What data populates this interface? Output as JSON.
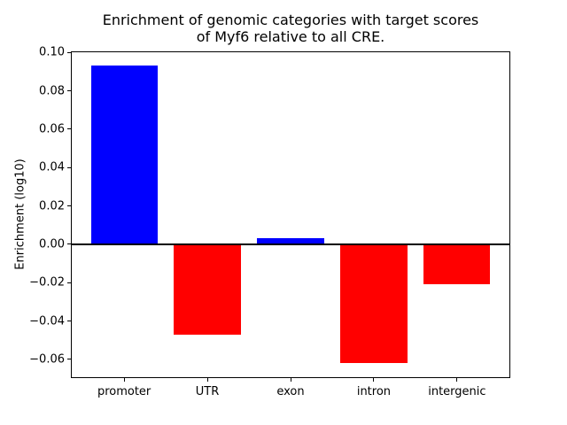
{
  "title": {
    "line1": "Enrichment of genomic categories with target scores",
    "line2": "of Myf6 relative to all CRE."
  },
  "chart_data": {
    "type": "bar",
    "title": "Enrichment of genomic categories with target scores\nof Myf6 relative to all CRE.",
    "categories": [
      "promoter",
      "UTR",
      "exon",
      "intron",
      "intergenic"
    ],
    "values": [
      0.093,
      -0.047,
      0.003,
      -0.062,
      -0.021
    ],
    "xlabel": "",
    "ylabel": "Enrichment (log10)",
    "ylim": [
      -0.0698,
      0.1008
    ],
    "yticks": [
      0.1,
      0.08,
      0.06,
      0.04,
      0.02,
      0.0,
      -0.02,
      -0.04,
      -0.06
    ],
    "ytick_labels": [
      "0.10",
      "0.08",
      "0.06",
      "0.04",
      "0.02",
      "0.00",
      "−0.02",
      "−0.04",
      "−0.06"
    ],
    "positive_color": "#0000ff",
    "negative_color": "#ff0000",
    "bar_width_ratio": 0.8,
    "zero_line": true,
    "grid": false,
    "legend_position": "none",
    "background_color": "#ffffff",
    "axes_color": "#000000"
  }
}
